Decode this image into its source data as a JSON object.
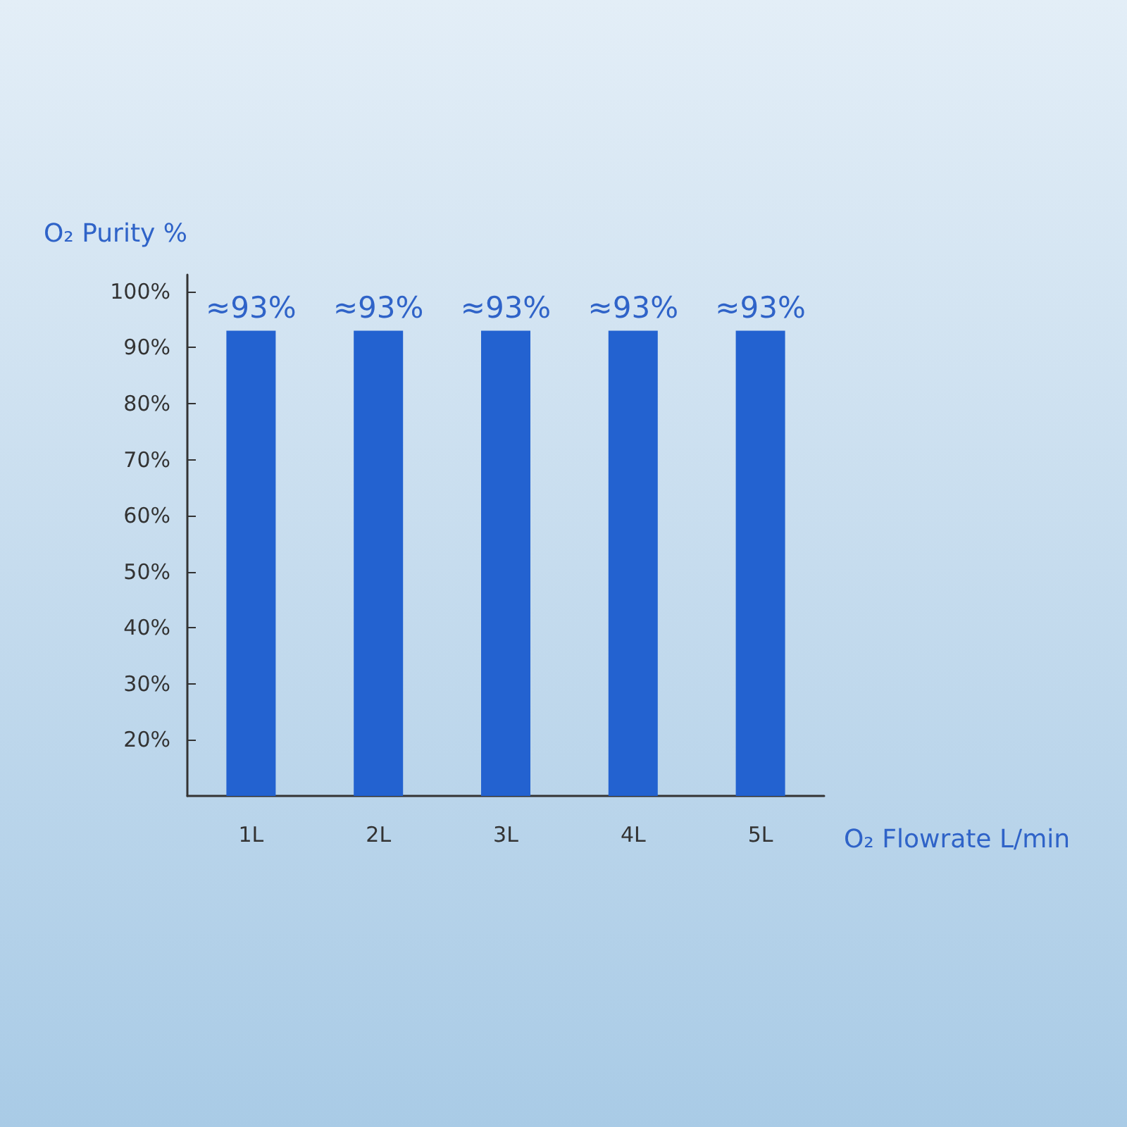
{
  "chart_data": {
    "type": "bar",
    "xlabel": "O₂ Flowrate L/min",
    "ylabel": "O₂ Purity %",
    "categories": [
      "1L",
      "2L",
      "3L",
      "4L",
      "5L"
    ],
    "values": [
      93,
      93,
      93,
      93,
      93
    ],
    "value_labels": [
      "≈93%",
      "≈93%",
      "≈93%",
      "≈93%",
      "≈93%"
    ],
    "color": "#2362d0",
    "ylim": [
      10,
      103
    ],
    "yticks": [
      {
        "value": 20,
        "label": "20%"
      },
      {
        "value": 30,
        "label": "30%"
      },
      {
        "value": 40,
        "label": "40%"
      },
      {
        "value": 50,
        "label": "50%"
      },
      {
        "value": 60,
        "label": "60%"
      },
      {
        "value": 70,
        "label": "70%"
      },
      {
        "value": 80,
        "label": "80%"
      },
      {
        "value": 90,
        "label": "90%"
      },
      {
        "value": 100,
        "label": "100%"
      }
    ],
    "grid": false
  }
}
